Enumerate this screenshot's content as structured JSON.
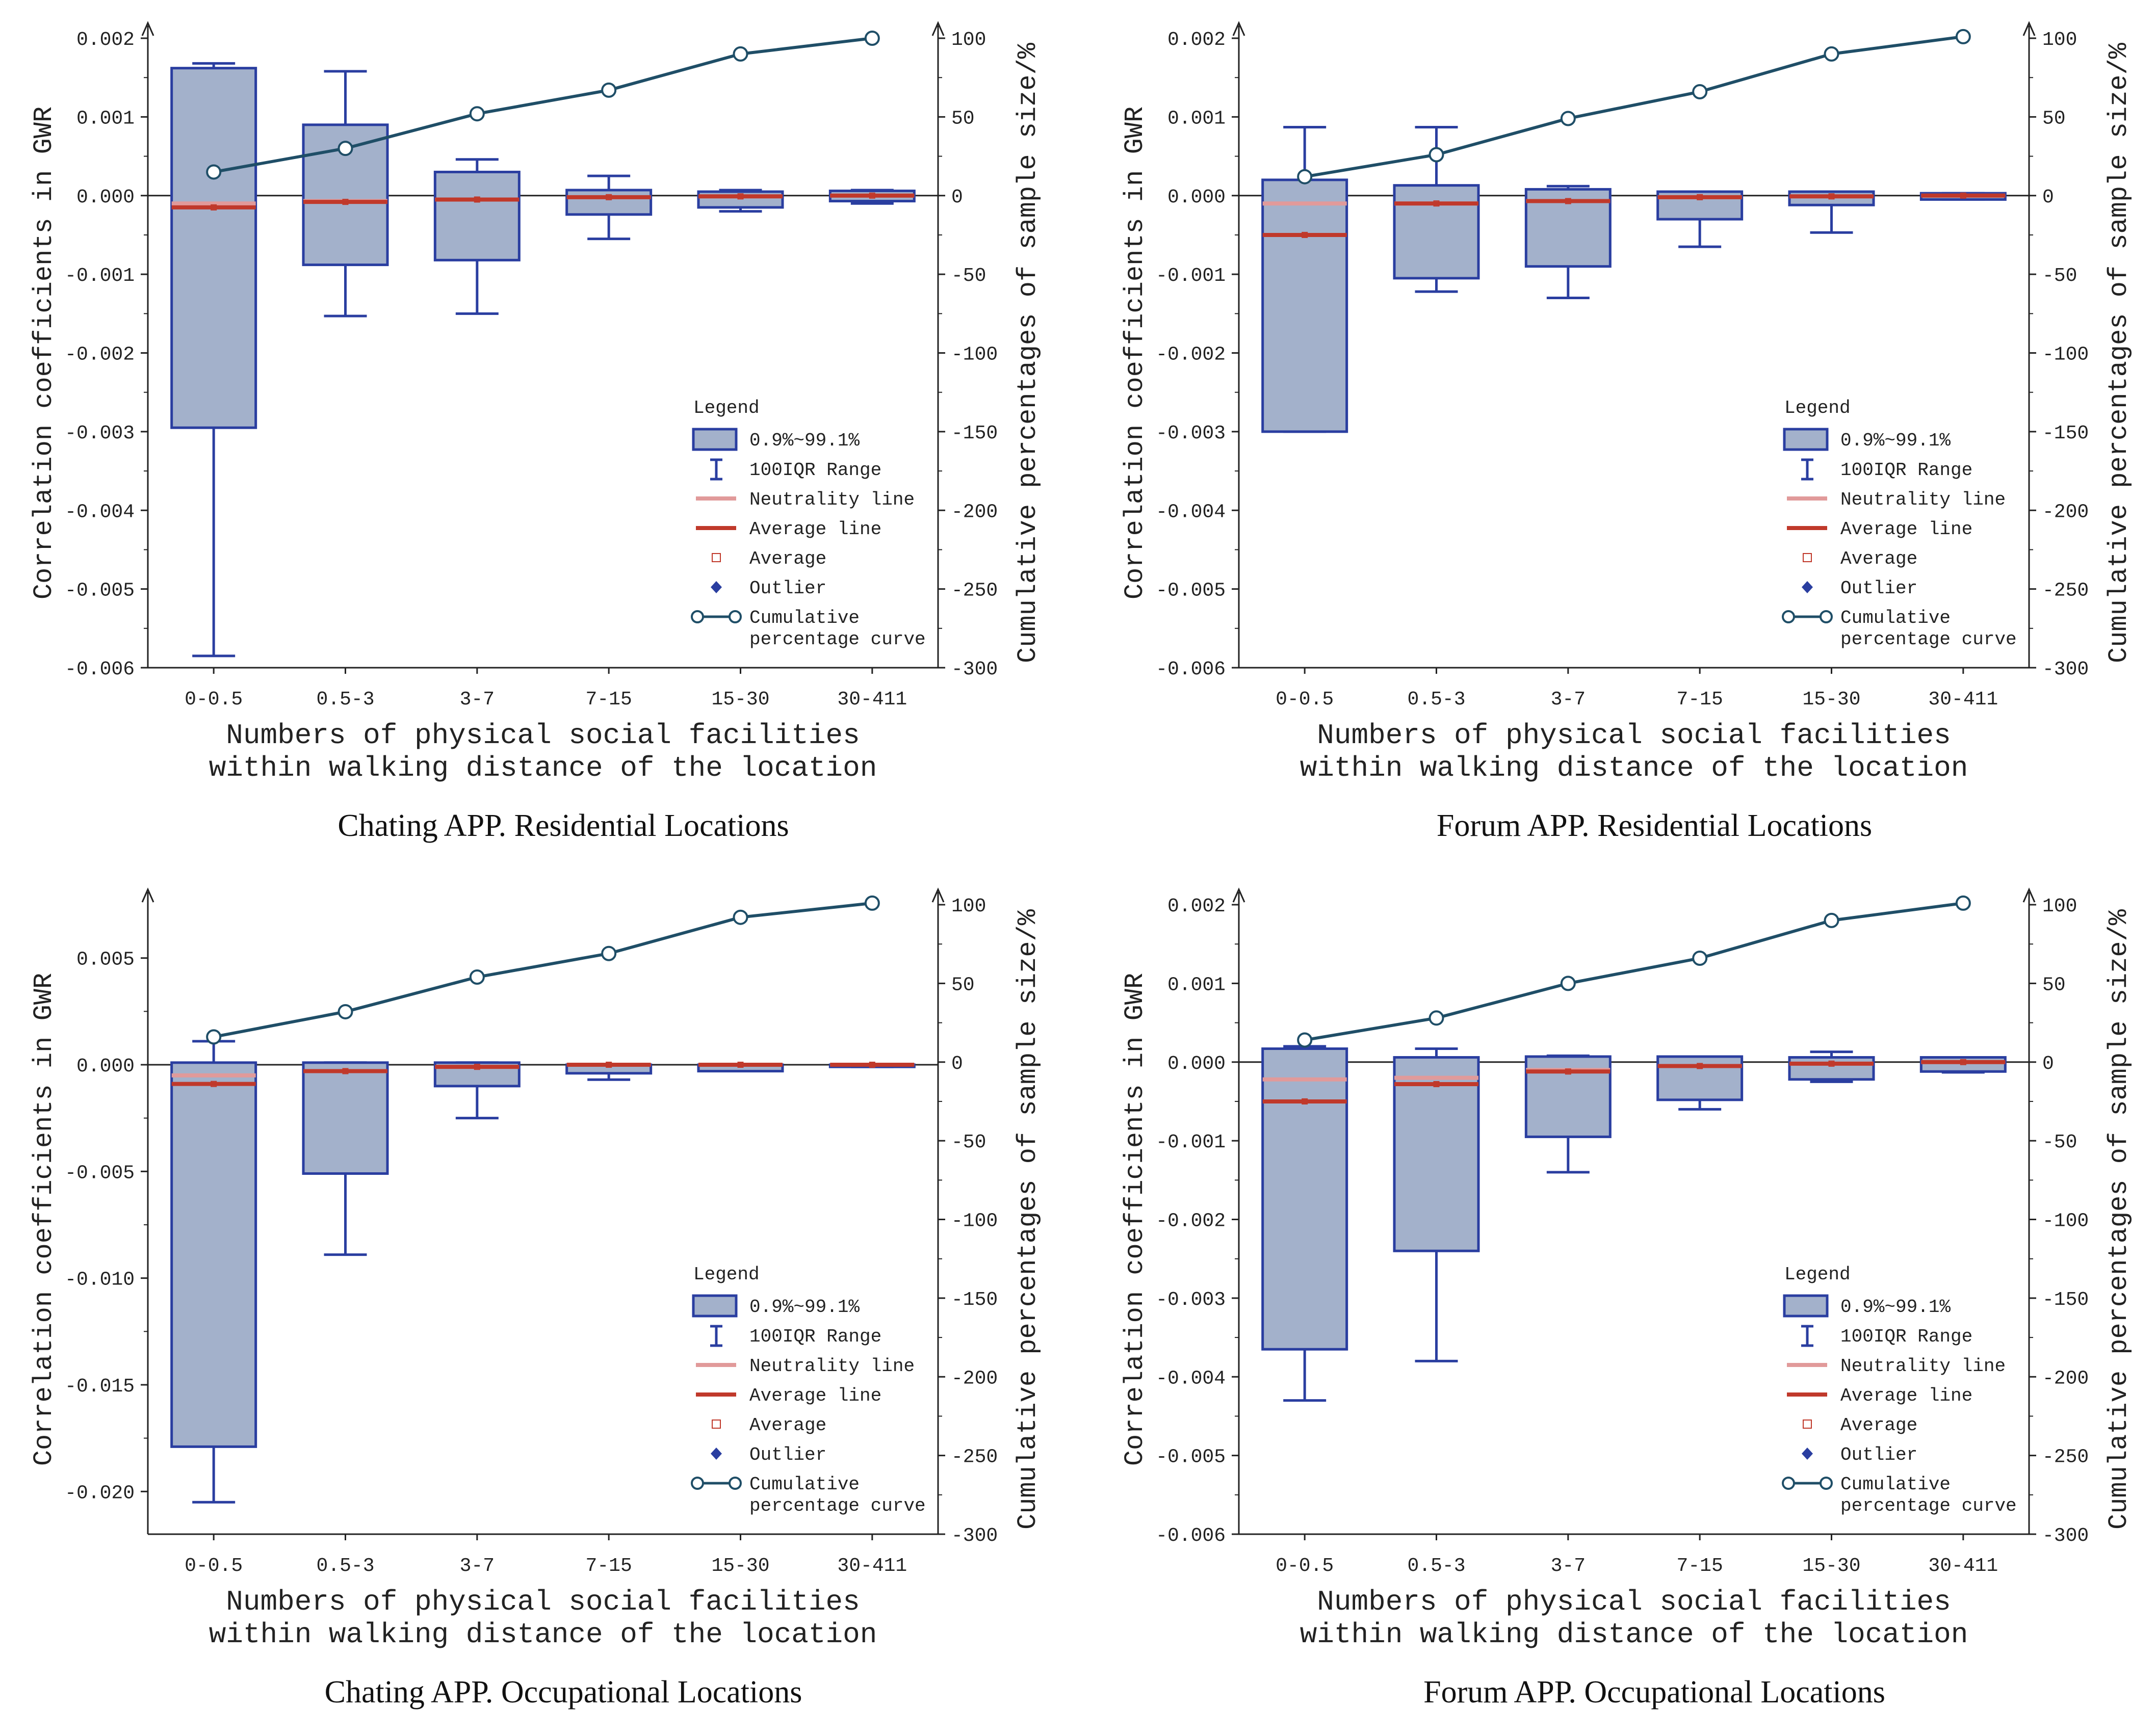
{
  "colors": {
    "box_fill": "#a3b1cb",
    "box_stroke": "#2a3ea0",
    "neutral": "#e19a9a",
    "average": "#c0392b",
    "curve": "#1f4e67",
    "axis": "#222222"
  },
  "legend": {
    "title": "Legend",
    "items": [
      {
        "key": "box",
        "label": "0.9%~99.1%"
      },
      {
        "key": "whisker",
        "label": "100IQR Range"
      },
      {
        "key": "neutral",
        "label": "Neutrality line"
      },
      {
        "key": "avgline",
        "label": "Average line"
      },
      {
        "key": "avgpoint",
        "label": "Average"
      },
      {
        "key": "outlier",
        "label": "Outlier"
      },
      {
        "key": "curve",
        "label": "Cumulative",
        "label2": "percentage curve"
      }
    ]
  },
  "chart_data": [
    {
      "type": "box",
      "title": "Chating APP. Residential Locations",
      "xlabel": [
        "Numbers of physical social facilities",
        "within walking distance of the location"
      ],
      "ylabel": "Correlation coefficients in GWR",
      "y2label": "Cumulative percentages of sample size/%",
      "categories": [
        "0-0.5",
        "0.5-3",
        "3-7",
        "7-15",
        "15-30",
        "30-411"
      ],
      "ylim": [
        -0.006,
        0.002
      ],
      "yticks": [
        -0.006,
        -0.005,
        -0.004,
        -0.003,
        -0.002,
        -0.001,
        0.0,
        0.001,
        0.002
      ],
      "ytick_labels": [
        "-0.006",
        "-0.005",
        "-0.004",
        "-0.003",
        "-0.002",
        "-0.001",
        "0.000",
        "0.001",
        "0.002"
      ],
      "y2lim": [
        -300,
        100
      ],
      "y2ticks": [
        -300,
        -250,
        -200,
        -150,
        -100,
        -50,
        0,
        50,
        100
      ],
      "y2tick_labels": [
        "-300",
        "-250",
        "-200",
        "-150",
        "-100",
        "-50",
        "0",
        "50",
        "100"
      ],
      "boxes": [
        {
          "whisker_low": -0.00585,
          "q_low": -0.00295,
          "q_high": 0.00162,
          "whisker_high": 0.00168,
          "neutral": -0.0001,
          "average": -0.00015
        },
        {
          "whisker_low": -0.00153,
          "q_low": -0.00088,
          "q_high": 0.0009,
          "whisker_high": 0.00158,
          "neutral": -7e-05,
          "average": -8e-05
        },
        {
          "whisker_low": -0.0015,
          "q_low": -0.00082,
          "q_high": 0.0003,
          "whisker_high": 0.00046,
          "neutral": -5e-05,
          "average": -5e-05
        },
        {
          "whisker_low": -0.00055,
          "q_low": -0.00024,
          "q_high": 7e-05,
          "whisker_high": 0.00025,
          "neutral": -2e-05,
          "average": -2e-05
        },
        {
          "whisker_low": -0.0002,
          "q_low": -0.00015,
          "q_high": 5e-05,
          "whisker_high": 7e-05,
          "neutral": -1e-05,
          "average": -1e-05
        },
        {
          "whisker_low": -0.0001,
          "q_low": -7e-05,
          "q_high": 6e-05,
          "whisker_high": 7e-05,
          "neutral": 0.0,
          "average": 0.0
        }
      ],
      "cumulative": [
        15,
        30,
        52,
        67,
        90,
        100
      ]
    },
    {
      "type": "box",
      "title": "Forum APP. Residential Locations",
      "xlabel": [
        "Numbers of physical social facilities",
        "within walking distance of the location"
      ],
      "ylabel": "Correlation coefficients in GWR",
      "y2label": "Cumulative percentages of sample size/%",
      "categories": [
        "0-0.5",
        "0.5-3",
        "3-7",
        "7-15",
        "15-30",
        "30-411"
      ],
      "ylim": [
        -0.006,
        0.002
      ],
      "yticks": [
        -0.006,
        -0.005,
        -0.004,
        -0.003,
        -0.002,
        -0.001,
        0.0,
        0.001,
        0.002
      ],
      "ytick_labels": [
        "-0.006",
        "-0.005",
        "-0.004",
        "-0.003",
        "-0.002",
        "-0.001",
        "0.000",
        "0.001",
        "0.002"
      ],
      "y2lim": [
        -300,
        100
      ],
      "y2ticks": [
        -300,
        -250,
        -200,
        -150,
        -100,
        -50,
        0,
        50,
        100
      ],
      "y2tick_labels": [
        "-300",
        "-250",
        "-200",
        "-150",
        "-100",
        "-50",
        "0",
        "50",
        "100"
      ],
      "boxes": [
        {
          "whisker_low": -0.003,
          "q_low": -0.003,
          "q_high": 0.0002,
          "whisker_high": 0.00087,
          "neutral": -0.0001,
          "average": -0.0005
        },
        {
          "whisker_low": -0.00122,
          "q_low": -0.00105,
          "q_high": 0.00013,
          "whisker_high": 0.00087,
          "neutral": -0.0001,
          "average": -0.0001
        },
        {
          "whisker_low": -0.0013,
          "q_low": -0.0009,
          "q_high": 8e-05,
          "whisker_high": 0.00012,
          "neutral": -7e-05,
          "average": -7e-05
        },
        {
          "whisker_low": -0.00065,
          "q_low": -0.0003,
          "q_high": 5e-05,
          "whisker_high": 5e-05,
          "neutral": -2e-05,
          "average": -2e-05
        },
        {
          "whisker_low": -0.00047,
          "q_low": -0.00012,
          "q_high": 5e-05,
          "whisker_high": 5e-05,
          "neutral": -1e-05,
          "average": -1e-05
        },
        {
          "whisker_low": -5e-05,
          "q_low": -5e-05,
          "q_high": 3e-05,
          "whisker_high": 3e-05,
          "neutral": 0.0,
          "average": 0.0
        }
      ],
      "cumulative": [
        12,
        26,
        49,
        66,
        90,
        101
      ]
    },
    {
      "type": "box",
      "title": "Chating APP. Occupational Locations",
      "xlabel": [
        "Numbers of physical social facilities",
        "within walking distance of the location"
      ],
      "ylabel": "Correlation coefficients in GWR",
      "y2label": "Cumulative percentages of sample size/%",
      "categories": [
        "0-0.5",
        "0.5-3",
        "3-7",
        "7-15",
        "15-30",
        "30-411"
      ],
      "ylim": [
        -0.022,
        0.0075
      ],
      "yticks": [
        -0.02,
        -0.015,
        -0.01,
        -0.005,
        0.0,
        0.005
      ],
      "ytick_labels": [
        "-0.020",
        "-0.015",
        "-0.010",
        "-0.005",
        "0.000",
        "0.005"
      ],
      "y2lim": [
        -300,
        100
      ],
      "y2ticks": [
        -300,
        -250,
        -200,
        -150,
        -100,
        -50,
        0,
        50,
        100
      ],
      "y2tick_labels": [
        "-300",
        "-250",
        "-200",
        "-150",
        "-100",
        "-50",
        "0",
        "50",
        "100"
      ],
      "boxes": [
        {
          "whisker_low": -0.0205,
          "q_low": -0.0179,
          "q_high": 0.0001,
          "whisker_high": 0.0011,
          "neutral": -0.0005,
          "average": -0.0009
        },
        {
          "whisker_low": -0.0089,
          "q_low": -0.0051,
          "q_high": 0.0001,
          "whisker_high": 0.0001,
          "neutral": -0.0003,
          "average": -0.0003
        },
        {
          "whisker_low": -0.0025,
          "q_low": -0.001,
          "q_high": 0.0001,
          "whisker_high": 0.0001,
          "neutral": -0.0001,
          "average": -0.0001
        },
        {
          "whisker_low": -0.0007,
          "q_low": -0.0004,
          "q_high": 0.0,
          "whisker_high": 0.0,
          "neutral": 0.0,
          "average": 0.0
        },
        {
          "whisker_low": -0.0003,
          "q_low": -0.0003,
          "q_high": 0.0,
          "whisker_high": 0.0,
          "neutral": 0.0,
          "average": 0.0
        },
        {
          "whisker_low": -0.0001,
          "q_low": -0.0001,
          "q_high": 0.0,
          "whisker_high": 0.0,
          "neutral": 0.0,
          "average": 0.0
        }
      ],
      "cumulative": [
        16,
        32,
        54,
        69,
        92,
        101
      ]
    },
    {
      "type": "box",
      "title": "Forum APP. Occupational Locations",
      "xlabel": [
        "Numbers of physical social facilities",
        "within walking distance of the location"
      ],
      "ylabel": "Correlation coefficients in GWR",
      "y2label": "Cumulative percentages of sample size/%",
      "categories": [
        "0-0.5",
        "0.5-3",
        "3-7",
        "7-15",
        "15-30",
        "30-411"
      ],
      "ylim": [
        -0.006,
        0.002
      ],
      "yticks": [
        -0.006,
        -0.005,
        -0.004,
        -0.003,
        -0.002,
        -0.001,
        0.0,
        0.001,
        0.002
      ],
      "ytick_labels": [
        "-0.006",
        "-0.005",
        "-0.004",
        "-0.003",
        "-0.002",
        "-0.001",
        "0.000",
        "0.001",
        "0.002"
      ],
      "y2lim": [
        -300,
        100
      ],
      "y2ticks": [
        -300,
        -250,
        -200,
        -150,
        -100,
        -50,
        0,
        50,
        100
      ],
      "y2tick_labels": [
        "-300",
        "-250",
        "-200",
        "-150",
        "-100",
        "-50",
        "0",
        "50",
        "100"
      ],
      "boxes": [
        {
          "whisker_low": -0.0043,
          "q_low": -0.00365,
          "q_high": 0.00017,
          "whisker_high": 0.0002,
          "neutral": -0.00022,
          "average": -0.0005
        },
        {
          "whisker_low": -0.0038,
          "q_low": -0.0024,
          "q_high": 6e-05,
          "whisker_high": 0.00017,
          "neutral": -0.0002,
          "average": -0.00028
        },
        {
          "whisker_low": -0.0014,
          "q_low": -0.00095,
          "q_high": 7e-05,
          "whisker_high": 8e-05,
          "neutral": -0.0001,
          "average": -0.00012
        },
        {
          "whisker_low": -0.0006,
          "q_low": -0.00048,
          "q_high": 7e-05,
          "whisker_high": 7e-05,
          "neutral": -5e-05,
          "average": -5e-05
        },
        {
          "whisker_low": -0.00025,
          "q_low": -0.00022,
          "q_high": 6e-05,
          "whisker_high": 0.00013,
          "neutral": -2e-05,
          "average": -2e-05
        },
        {
          "whisker_low": -0.00013,
          "q_low": -0.00012,
          "q_high": 6e-05,
          "whisker_high": 6e-05,
          "neutral": 0.0,
          "average": 0.0
        }
      ],
      "cumulative": [
        14,
        28,
        50,
        66,
        90,
        101
      ]
    }
  ]
}
